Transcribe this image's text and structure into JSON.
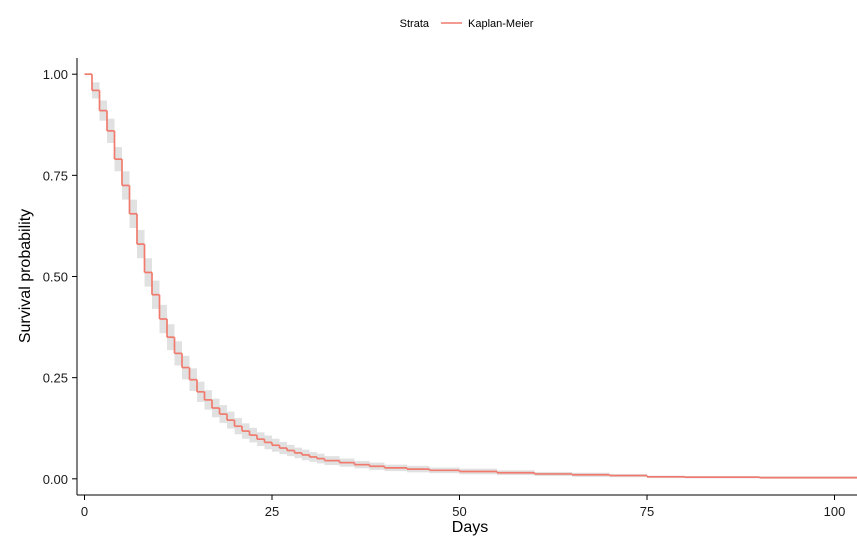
{
  "chart_data": {
    "type": "line",
    "subtype": "kaplan-meier-step",
    "xlabel": "Days",
    "ylabel": "Survival probability",
    "xlim": [
      -1,
      103
    ],
    "ylim": [
      -0.04,
      1.04
    ],
    "x_ticks": [
      0,
      25,
      50,
      75,
      100
    ],
    "y_ticks": [
      0.0,
      0.25,
      0.5,
      0.75,
      1.0
    ],
    "x_tick_labels": [
      "0",
      "25",
      "50",
      "75",
      "100"
    ],
    "y_tick_labels": [
      "0.00",
      "0.25",
      "0.50",
      "0.75",
      "1.00"
    ],
    "grid": false,
    "legend": {
      "position": "top",
      "title": "Strata",
      "entries": [
        "Kaplan-Meier"
      ]
    },
    "colors": {
      "line": "#f07a6d",
      "band": "#dcdcdc"
    },
    "series": [
      {
        "name": "Kaplan-Meier",
        "x": [
          0,
          1,
          2,
          3,
          4,
          5,
          6,
          7,
          8,
          9,
          10,
          11,
          12,
          13,
          14,
          15,
          16,
          17,
          18,
          19,
          20,
          21,
          22,
          23,
          24,
          25,
          26,
          27,
          28,
          29,
          30,
          31,
          32,
          34,
          36,
          38,
          40,
          43,
          46,
          50,
          55,
          60,
          65,
          70,
          75,
          80,
          90,
          103
        ],
        "y": [
          1.0,
          0.96,
          0.91,
          0.86,
          0.79,
          0.725,
          0.655,
          0.58,
          0.51,
          0.455,
          0.395,
          0.35,
          0.31,
          0.275,
          0.245,
          0.215,
          0.195,
          0.175,
          0.16,
          0.145,
          0.13,
          0.118,
          0.108,
          0.098,
          0.09,
          0.083,
          0.076,
          0.07,
          0.064,
          0.059,
          0.054,
          0.05,
          0.045,
          0.04,
          0.035,
          0.031,
          0.027,
          0.024,
          0.021,
          0.018,
          0.015,
          0.012,
          0.01,
          0.008,
          0.005,
          0.004,
          0.003,
          0.003
        ],
        "lower": [
          1.0,
          0.94,
          0.885,
          0.83,
          0.76,
          0.69,
          0.62,
          0.545,
          0.475,
          0.42,
          0.36,
          0.318,
          0.28,
          0.246,
          0.217,
          0.19,
          0.171,
          0.152,
          0.138,
          0.124,
          0.11,
          0.099,
          0.09,
          0.081,
          0.073,
          0.067,
          0.061,
          0.056,
          0.051,
          0.046,
          0.042,
          0.038,
          0.034,
          0.03,
          0.026,
          0.022,
          0.019,
          0.016,
          0.014,
          0.011,
          0.009,
          0.007,
          0.005,
          0.004,
          0.002,
          0.001,
          0.0,
          0.0
        ],
        "upper": [
          1.0,
          0.98,
          0.935,
          0.89,
          0.82,
          0.76,
          0.69,
          0.615,
          0.545,
          0.49,
          0.43,
          0.382,
          0.34,
          0.304,
          0.273,
          0.24,
          0.219,
          0.198,
          0.182,
          0.166,
          0.15,
          0.137,
          0.126,
          0.115,
          0.107,
          0.099,
          0.091,
          0.084,
          0.077,
          0.072,
          0.066,
          0.062,
          0.056,
          0.05,
          0.044,
          0.04,
          0.035,
          0.032,
          0.028,
          0.025,
          0.021,
          0.017,
          0.015,
          0.012,
          0.008,
          0.007,
          0.006,
          0.006
        ]
      }
    ]
  }
}
